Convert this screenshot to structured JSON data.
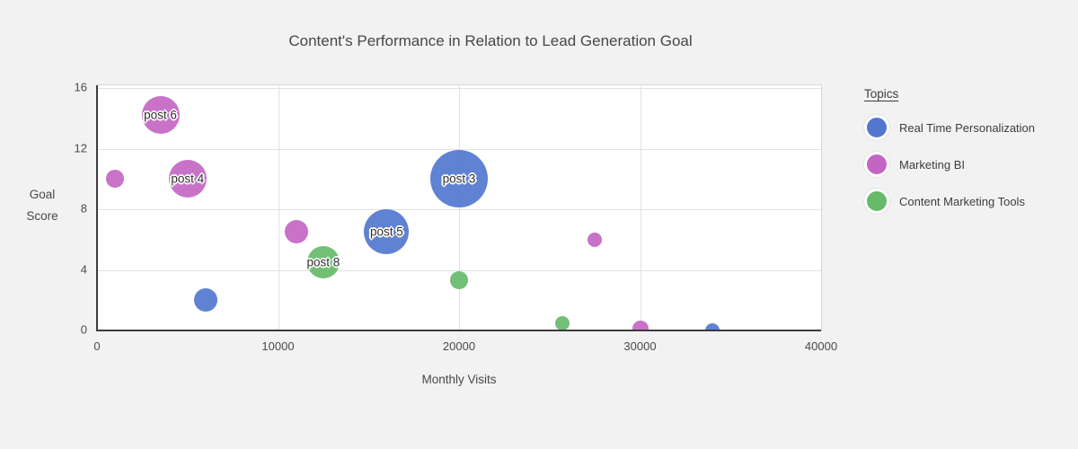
{
  "chart_data": {
    "type": "scatter",
    "mark": "bubble",
    "title": "Content's Performance in Relation to Lead Generation Goal",
    "xlabel": "Monthly Visits",
    "ylabel": "Goal Score",
    "ylabel_lines": [
      "Goal",
      "Score"
    ],
    "xlim": [
      0,
      40000
    ],
    "ylim": [
      0,
      16
    ],
    "x_ticks": [
      0,
      10000,
      20000,
      30000,
      40000
    ],
    "y_ticks": [
      0,
      4,
      8,
      12,
      16
    ],
    "grid": true,
    "legend": {
      "title": "Topics",
      "position": "right"
    },
    "series": [
      {
        "name": "Real Time Personalization",
        "color": "#5377cf",
        "points": [
          {
            "x": 20000,
            "y": 10,
            "r": 32,
            "label": "post 3"
          },
          {
            "x": 16000,
            "y": 6.5,
            "r": 25,
            "label": "post 5"
          },
          {
            "x": 6000,
            "y": 2,
            "r": 13
          },
          {
            "x": 34000,
            "y": 0,
            "r": 8
          }
        ]
      },
      {
        "name": "Marketing BI",
        "color": "#c366c3",
        "points": [
          {
            "x": 3500,
            "y": 14.2,
            "r": 21,
            "label": "post 6"
          },
          {
            "x": 5000,
            "y": 10,
            "r": 21,
            "label": "post 4"
          },
          {
            "x": 1000,
            "y": 10,
            "r": 10
          },
          {
            "x": 11000,
            "y": 6.5,
            "r": 13
          },
          {
            "x": 27500,
            "y": 6,
            "r": 8
          },
          {
            "x": 30000,
            "y": 0.1,
            "r": 9
          }
        ]
      },
      {
        "name": "Content Marketing Tools",
        "color": "#66ba6a",
        "points": [
          {
            "x": 12500,
            "y": 4.5,
            "r": 18,
            "label": "post 8"
          },
          {
            "x": 20000,
            "y": 3.3,
            "r": 10
          },
          {
            "x": 25700,
            "y": 0.5,
            "r": 8
          }
        ]
      }
    ],
    "colors": {
      "background": "#f2f2f2",
      "plot_background": "#ffffff",
      "axis": "#3c3c3c",
      "gridline": "#e2e2e2",
      "title_text": "#474747"
    }
  }
}
